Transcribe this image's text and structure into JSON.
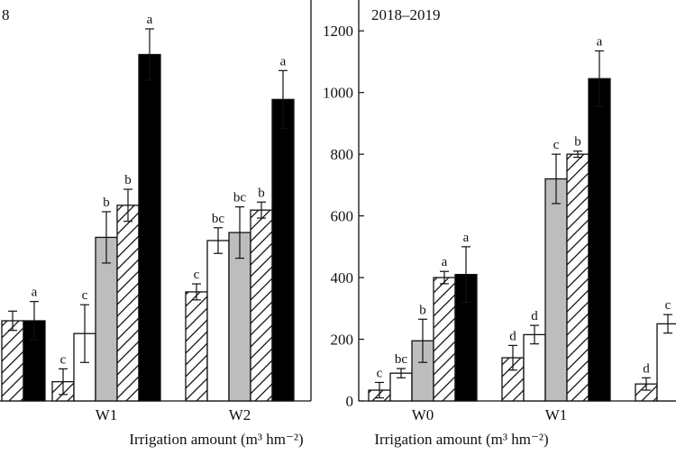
{
  "chart_data": [
    {
      "type": "bar",
      "title": "8",
      "xlabel": "Irrigation amount (m³ hm⁻²)",
      "ylabel": "",
      "categories": [
        "",
        "W1",
        "W2"
      ],
      "ylim": [
        0,
        1250
      ],
      "show_y_ticks": false,
      "grid": false,
      "series": [
        {
          "pattern": "hatch",
          "values": [
            null,
            60,
            340
          ],
          "errors": [
            null,
            40,
            25
          ],
          "labels": [
            null,
            "c",
            "c"
          ]
        },
        {
          "pattern": "white",
          "values": [
            null,
            210,
            500
          ],
          "errors": [
            null,
            90,
            40
          ],
          "labels": [
            null,
            "c",
            "bc"
          ]
        },
        {
          "pattern": "gray",
          "values": [
            null,
            510,
            525
          ],
          "errors": [
            null,
            80,
            80
          ],
          "labels": [
            null,
            "b",
            "bc"
          ]
        },
        {
          "pattern": "hatch",
          "values": [
            250,
            610,
            595
          ],
          "errors": [
            30,
            50,
            25
          ],
          "labels": [
            null,
            "b",
            "b"
          ]
        },
        {
          "pattern": "black",
          "values": [
            250,
            1080,
            940
          ],
          "errors": [
            60,
            80,
            90
          ],
          "labels": [
            "a",
            "a",
            "a"
          ]
        }
      ]
    },
    {
      "type": "bar",
      "title": "2018–2019",
      "xlabel": "Irrigation amount (m³ hm⁻²)",
      "ylabel": "",
      "categories": [
        "W0",
        "W1",
        ""
      ],
      "ylim": [
        0,
        1300
      ],
      "yticks": [
        "0",
        "200",
        "400",
        "600",
        "800",
        "1000",
        "1200"
      ],
      "grid": false,
      "series": [
        {
          "pattern": "hatch",
          "values": [
            35,
            140,
            55
          ],
          "errors": [
            25,
            40,
            20
          ],
          "labels": [
            "c",
            "d",
            "d"
          ]
        },
        {
          "pattern": "white",
          "values": [
            90,
            215,
            250
          ],
          "errors": [
            15,
            30,
            30
          ],
          "labels": [
            "bc",
            "d",
            "c"
          ]
        },
        {
          "pattern": "gray",
          "values": [
            195,
            720,
            null
          ],
          "errors": [
            70,
            80,
            null
          ],
          "labels": [
            "b",
            "c",
            null
          ]
        },
        {
          "pattern": "hatch",
          "values": [
            400,
            800,
            null
          ],
          "errors": [
            20,
            10,
            null
          ],
          "labels": [
            "a",
            "b",
            null
          ]
        },
        {
          "pattern": "black",
          "values": [
            410,
            1045,
            null
          ],
          "errors": [
            90,
            90,
            null
          ],
          "labels": [
            "a",
            "a",
            null
          ]
        }
      ]
    }
  ]
}
